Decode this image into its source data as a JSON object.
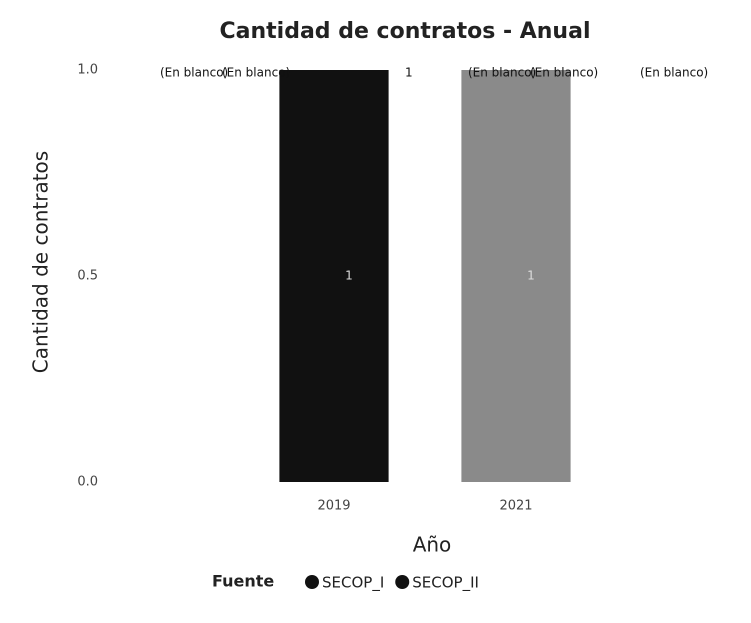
{
  "chart_data": {
    "type": "bar",
    "stacked": true,
    "title": "Cantidad de contratos - Anual",
    "y_label": "Cantidad de contratos",
    "x_label": "Año",
    "legend_title": "Fuente",
    "categories": [
      "2019",
      "2021"
    ],
    "series": [
      {
        "name": "SECOP_I",
        "color": "#111111",
        "values": [
          1,
          null
        ]
      },
      {
        "name": "SECOP_II",
        "color": "#8a8a8a",
        "values": [
          null,
          1
        ]
      }
    ],
    "annotations": [
      "(En blanco)",
      "(En blanco)",
      "1",
      "(En blanco)",
      "(En blanco)",
      "(En blanco)"
    ],
    "ylim": [
      0,
      1
    ],
    "yticks": [
      {
        "value": 0,
        "label": "0.0"
      },
      0.5,
      {
        "value": 1,
        "label": "1.0"
      }
    ],
    "legend": "bottom"
  }
}
